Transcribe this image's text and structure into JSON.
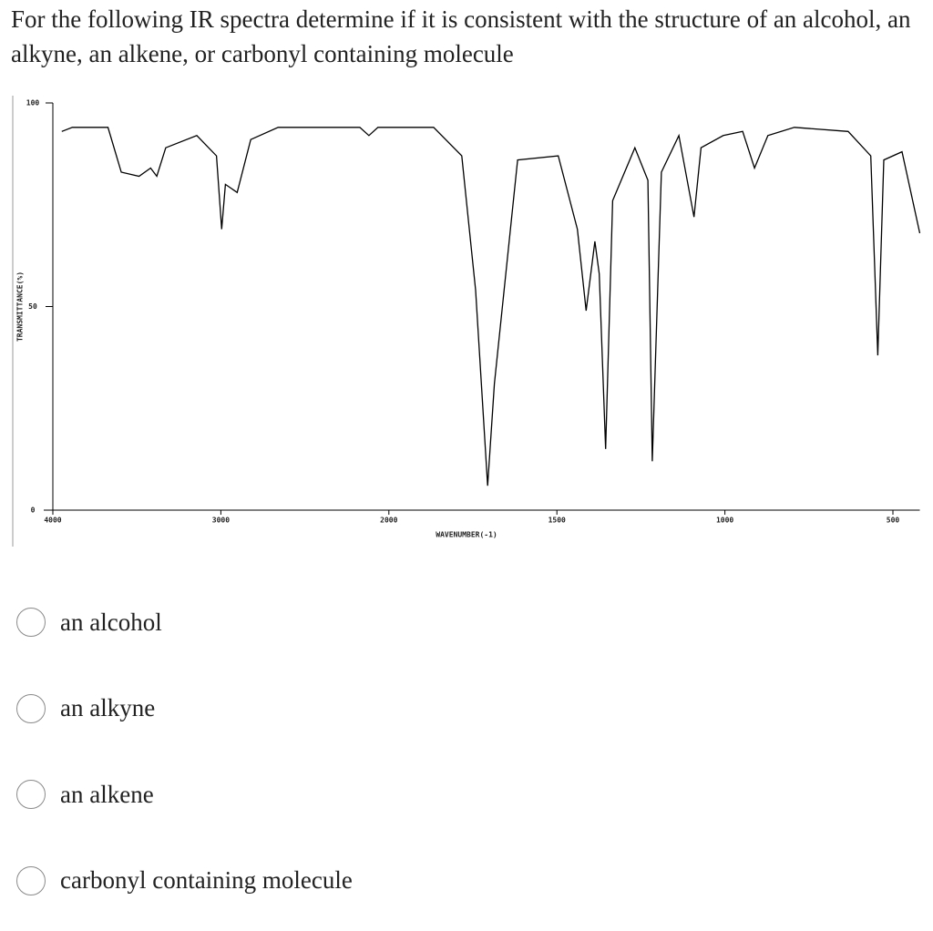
{
  "question": "For the following IR spectra determine if it is consistent with the structure of an alcohol, an alkyne, an alkene, or carbonyl containing molecule",
  "chart_data": {
    "type": "line",
    "x_label": "WAVENUMBER(-1)",
    "y_label": "TRANSMITTANCE(%)",
    "color": "#000000",
    "x": [
      3947,
      3884,
      3672,
      3593,
      3487,
      3418,
      3381,
      3328,
      3143,
      3026,
      2995,
      2973,
      2903,
      2822,
      2659,
      2173,
      2119,
      2065,
      1867,
      1783,
      1742,
      1706,
      1686,
      1617,
      1496,
      1439,
      1413,
      1387,
      1374,
      1355,
      1334,
      1268,
      1229,
      1216,
      1189,
      1137,
      1092,
      1071,
      1005,
      947,
      912,
      872,
      793,
      633,
      566,
      545,
      527,
      473,
      420
    ],
    "values": [
      93,
      94,
      94,
      83,
      82,
      84,
      82,
      89,
      92,
      87,
      69,
      80,
      78,
      91,
      94,
      94,
      92,
      94,
      94,
      87,
      54,
      6,
      31,
      86,
      87,
      69,
      49,
      66,
      58,
      15,
      76,
      89,
      81,
      12,
      83,
      92,
      72,
      89,
      92,
      93,
      84,
      92,
      94,
      93,
      87,
      38,
      86,
      88,
      68
    ],
    "xlim": [
      4000,
      420
    ],
    "xticks": [
      4000,
      3000,
      2000,
      1500,
      1000,
      500
    ],
    "ylim": [
      0,
      100
    ],
    "yticks": [
      0,
      50,
      100
    ]
  },
  "options": [
    "an alcohol",
    "an alkyne",
    "an alkene",
    "carbonyl containing molecule"
  ]
}
